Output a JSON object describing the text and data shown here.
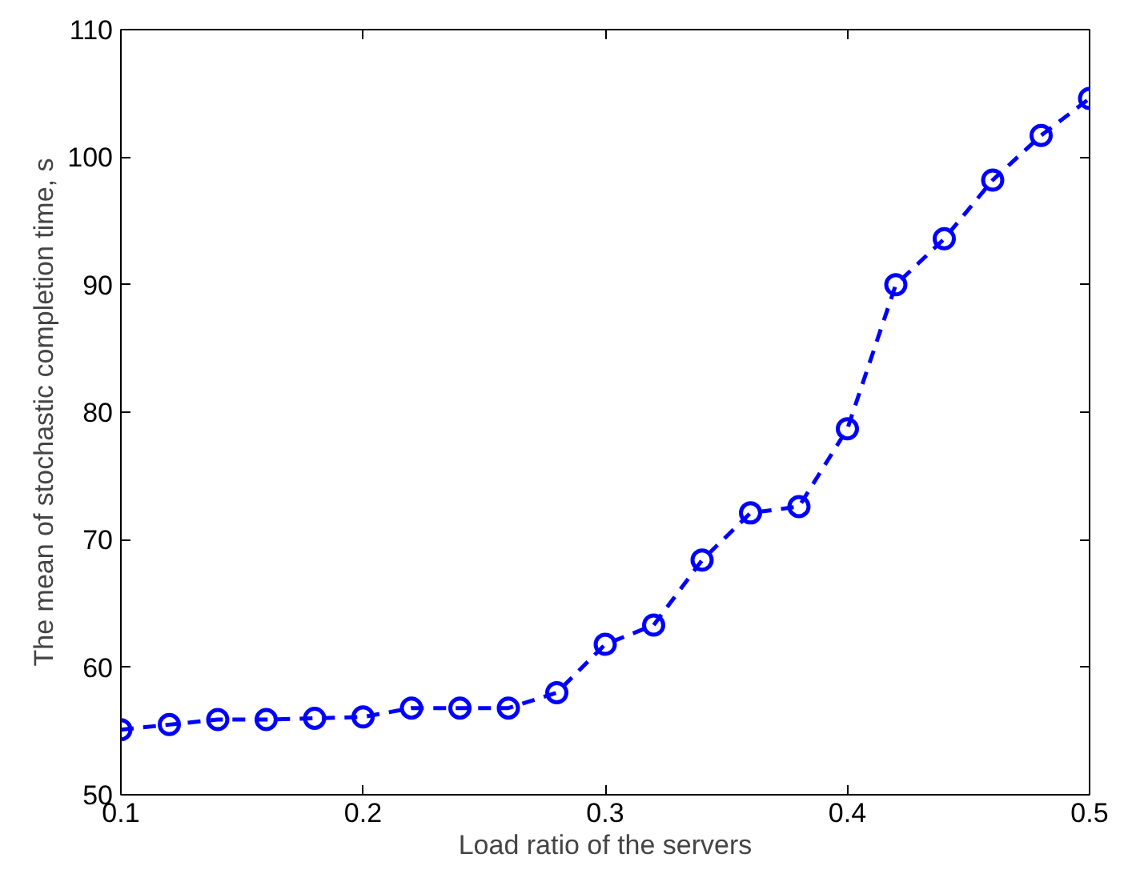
{
  "chart_data": {
    "type": "line",
    "xlabel": "Load ratio of the servers",
    "ylabel": "The mean of stochastic completion time, s",
    "x": [
      0.1,
      0.12,
      0.14,
      0.16,
      0.18,
      0.2,
      0.22,
      0.24,
      0.26,
      0.28,
      0.3,
      0.32,
      0.34,
      0.36,
      0.38,
      0.4,
      0.42,
      0.44,
      0.46,
      0.48,
      0.5
    ],
    "series": [
      {
        "color": "#0000ff",
        "values": [
          55.1,
          55.5,
          55.9,
          55.9,
          56.0,
          56.1,
          56.8,
          56.8,
          56.8,
          58.0,
          61.8,
          63.3,
          68.4,
          72.1,
          72.6,
          78.7,
          90.0,
          93.6,
          98.2,
          101.7,
          104.6
        ]
      }
    ],
    "xlim": [
      0.1,
      0.5
    ],
    "xticks": [
      0.1,
      0.2,
      0.3,
      0.4,
      0.5
    ],
    "ylim": [
      50,
      110
    ],
    "yticks": [
      50,
      60,
      70,
      80,
      90,
      100,
      110
    ],
    "grid": false,
    "marker": "circle",
    "line_style": "dashed"
  }
}
